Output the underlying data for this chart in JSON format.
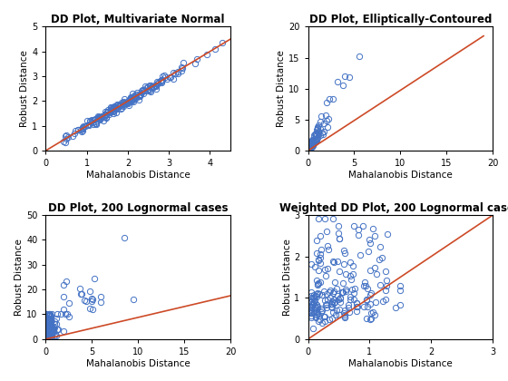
{
  "plots": [
    {
      "title": "DD Plot, Multivariate Normal",
      "xlabel": "Mahalanobis Distance",
      "ylabel": "Robust Distance",
      "xlim": [
        0,
        4.5
      ],
      "ylim": [
        0,
        5
      ],
      "xticks": [
        0,
        1,
        2,
        3,
        4
      ],
      "yticks": [
        0,
        1,
        2,
        3,
        4,
        5
      ],
      "line_x0": 0,
      "line_x1": 4.5,
      "line_y0": 0,
      "line_y1": 4.5,
      "scatter_type": "normal",
      "seed": 42
    },
    {
      "title": "DD Plot, Elliptically-Contoured",
      "xlabel": "Mahalanobis Distance",
      "ylabel": "Robust Distance",
      "xlim": [
        0,
        20
      ],
      "ylim": [
        0,
        20
      ],
      "xticks": [
        0,
        5,
        10,
        15,
        20
      ],
      "yticks": [
        0,
        5,
        10,
        15,
        20
      ],
      "line_x0": 0,
      "line_x1": 19,
      "line_y0": 0,
      "line_y1": 18.5,
      "scatter_type": "elliptical",
      "seed": 7
    },
    {
      "title": "DD Plot, 200 Lognormal cases",
      "xlabel": "Mahalanobis Distance",
      "ylabel": "Robust Distance",
      "xlim": [
        0,
        20
      ],
      "ylim": [
        0,
        50
      ],
      "xticks": [
        0,
        5,
        10,
        15,
        20
      ],
      "yticks": [
        0,
        10,
        20,
        30,
        40,
        50
      ],
      "line_x0": 0,
      "line_x1": 20,
      "line_y0": 0,
      "line_y1": 17.5,
      "scatter_type": "lognormal",
      "seed": 99
    },
    {
      "title": "Weighted DD Plot, 200 Lognormal cases",
      "xlabel": "Mahalanobis Distance",
      "ylabel": "Robust Distance",
      "xlim": [
        0,
        3
      ],
      "ylim": [
        0,
        3
      ],
      "xticks": [
        0,
        1,
        2,
        3
      ],
      "yticks": [
        0,
        1,
        2,
        3
      ],
      "line_x0": 0,
      "line_x1": 3,
      "line_y0": 0,
      "line_y1": 3,
      "scatter_type": "weighted_lognormal",
      "seed": 55
    }
  ],
  "scatter_color": "#4472C4",
  "line_color": "#CD4A27",
  "marker_size": 4.5,
  "line_width": 1.2,
  "bg_color": "#ffffff",
  "title_fontsize": 8.5,
  "label_fontsize": 7.5,
  "tick_fontsize": 7
}
